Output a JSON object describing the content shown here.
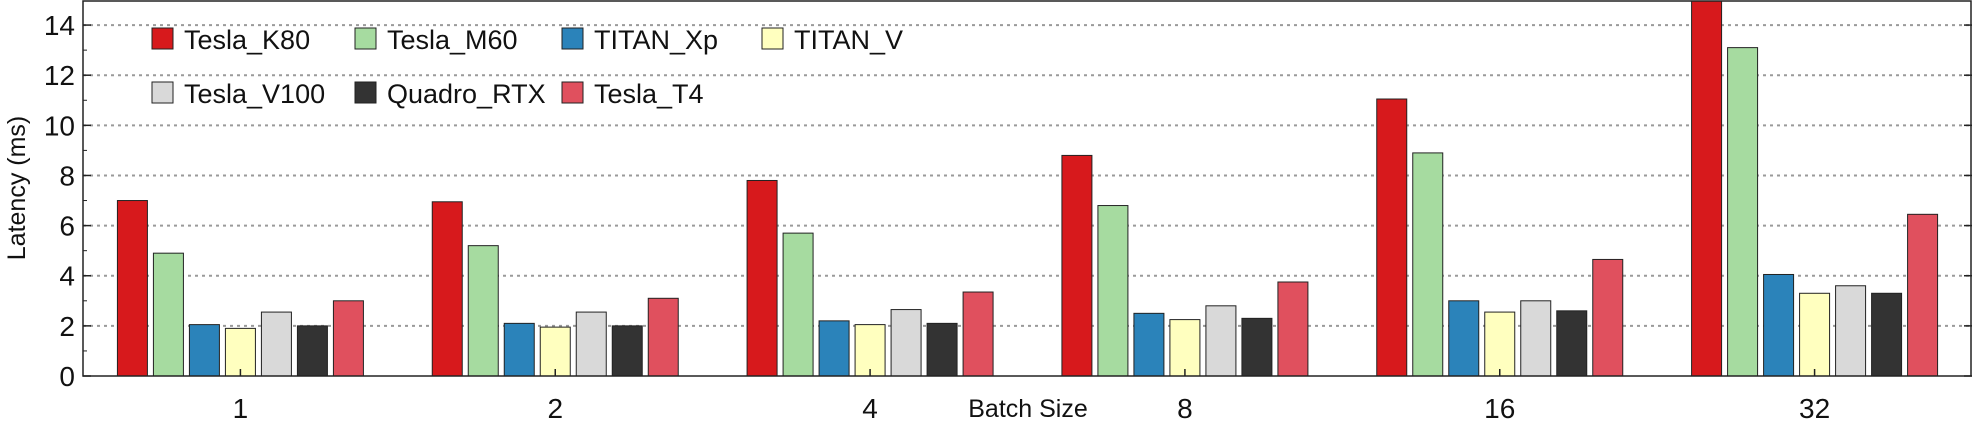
{
  "chart_data": {
    "type": "bar",
    "xlabel": "Batch Size",
    "ylabel": "Latency (ms)",
    "ylim": [
      0,
      15
    ],
    "yticks": [
      0,
      2,
      4,
      6,
      8,
      10,
      12,
      14
    ],
    "grid": "horizontal dotted",
    "legend_position": "top-left",
    "categories": [
      "1",
      "2",
      "4",
      "8",
      "16",
      "32"
    ],
    "series": [
      {
        "name": "Tesla_K80",
        "color": "#d7191c",
        "values": [
          7.0,
          6.95,
          7.8,
          8.8,
          11.05,
          15.0
        ]
      },
      {
        "name": "Tesla_M60",
        "color": "#a6dba0",
        "values": [
          4.9,
          5.2,
          5.7,
          6.8,
          8.9,
          13.1
        ]
      },
      {
        "name": "TITAN_Xp",
        "color": "#2b83ba",
        "values": [
          2.05,
          2.1,
          2.2,
          2.5,
          3.0,
          4.05
        ]
      },
      {
        "name": "TITAN_V",
        "color": "#ffffbf",
        "values": [
          1.9,
          1.95,
          2.05,
          2.25,
          2.55,
          3.3
        ]
      },
      {
        "name": "Tesla_V100",
        "color": "#d9d9d9",
        "values": [
          2.55,
          2.55,
          2.65,
          2.8,
          3.0,
          3.6
        ]
      },
      {
        "name": "Quadro_RTX",
        "color": "#333333",
        "values": [
          2.0,
          2.0,
          2.1,
          2.3,
          2.6,
          3.3
        ]
      },
      {
        "name": "Tesla_T4",
        "color": "#e0505e",
        "values": [
          3.0,
          3.1,
          3.35,
          3.75,
          4.65,
          6.45
        ]
      }
    ]
  }
}
